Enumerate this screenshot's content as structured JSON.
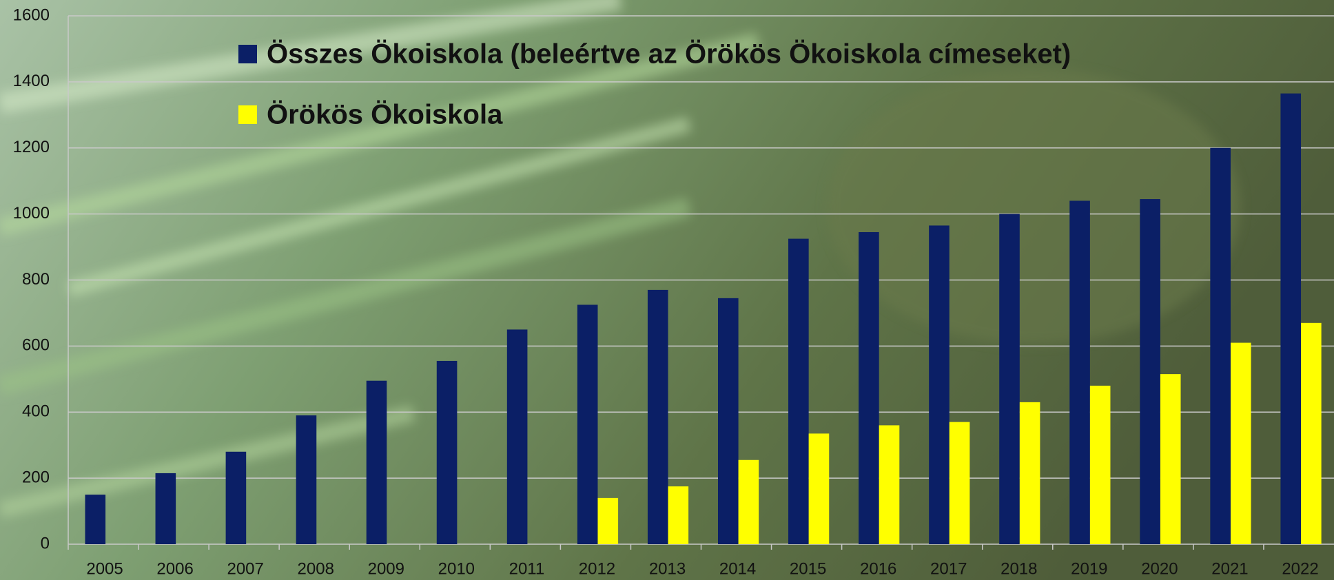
{
  "chart_data": {
    "type": "bar",
    "categories": [
      "2005",
      "2006",
      "2007",
      "2008",
      "2009",
      "2010",
      "2011",
      "2012",
      "2013",
      "2014",
      "2015",
      "2016",
      "2017",
      "2018",
      "2019",
      "2020",
      "2021",
      "2022"
    ],
    "series": [
      {
        "name": "Összes Ökoiskola (beleértve az Örökös Ökoiskola címeseket)",
        "color": "#0b1f66",
        "values": [
          150,
          215,
          280,
          390,
          495,
          555,
          650,
          725,
          770,
          745,
          925,
          945,
          965,
          1000,
          1040,
          1045,
          1200,
          1365
        ]
      },
      {
        "name": "Örökös Ökoiskola",
        "color": "#ffff00",
        "values": [
          null,
          null,
          null,
          null,
          null,
          null,
          null,
          140,
          175,
          255,
          335,
          360,
          370,
          430,
          480,
          515,
          610,
          670
        ]
      }
    ],
    "ylim": [
      0,
      1600
    ],
    "yticks": [
      0,
      200,
      400,
      600,
      800,
      1000,
      1200,
      1400,
      1600
    ],
    "grid": true
  }
}
